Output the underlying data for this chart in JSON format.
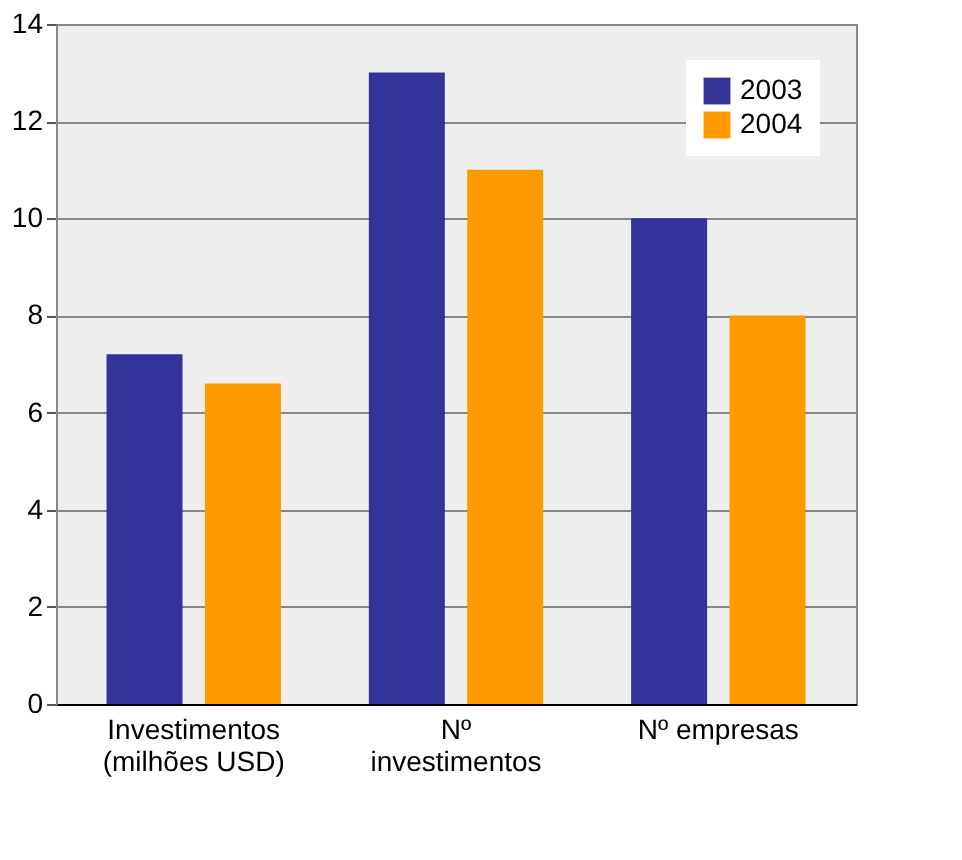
{
  "chart_data": {
    "type": "bar",
    "categories": [
      "Investimentos\n(milhões USD)",
      "Nº\ninvestimentos",
      "Nº empresas"
    ],
    "series": [
      {
        "name": "2003",
        "color": "#333399",
        "values": [
          7.2,
          13,
          10
        ]
      },
      {
        "name": "2004",
        "color": "#ff9900",
        "values": [
          6.6,
          11,
          8
        ]
      }
    ],
    "ylim": [
      0,
      14
    ],
    "yticks": [
      0,
      2,
      4,
      6,
      8,
      10,
      12,
      14
    ],
    "grid": "y",
    "legend": "top right"
  }
}
